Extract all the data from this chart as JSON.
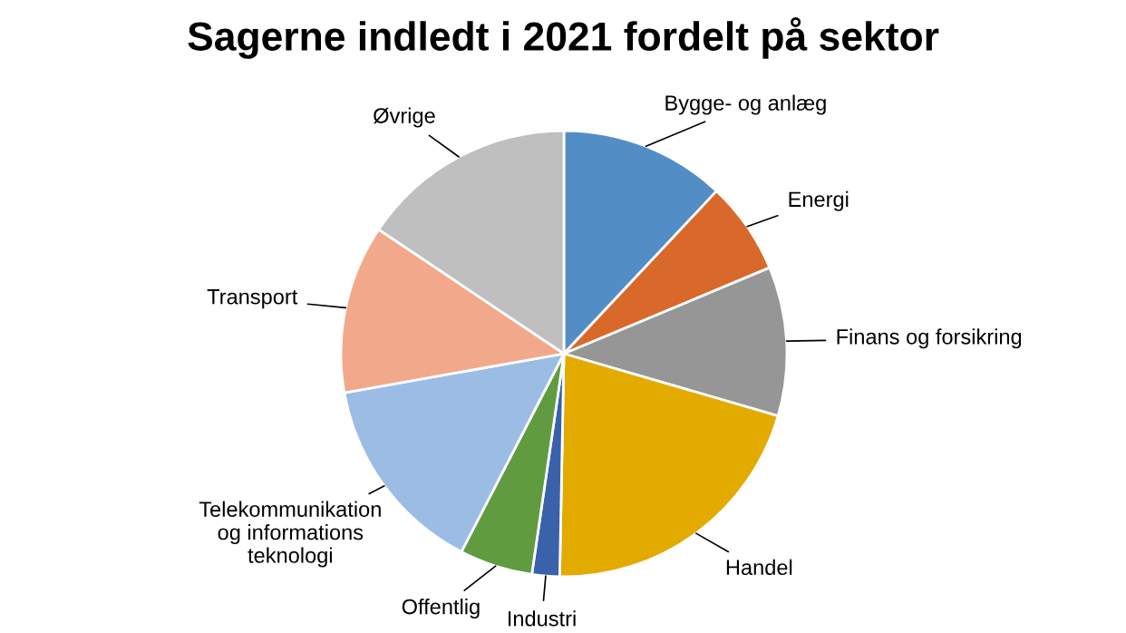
{
  "chart_data": {
    "type": "pie",
    "title": "Sagerne indledt i 2021 fordelt på sektor",
    "categories": [
      "Bygge- og anlæg",
      "Energi",
      "Finans og forsikring",
      "Handel",
      "Industri",
      "Offentlig",
      "Telekommunikation\nog informations\nteknologi",
      "Transport",
      "Øvrige"
    ],
    "values": [
      12,
      6.7,
      10.8,
      20.8,
      2,
      5.3,
      14.6,
      12.2,
      15.6
    ],
    "colors": [
      "#538dc6",
      "#d9692a",
      "#969696",
      "#e3aa00",
      "#3a62ab",
      "#619b3f",
      "#9cbde3",
      "#f2a98b",
      "#bfbfbf"
    ],
    "legend": false
  }
}
